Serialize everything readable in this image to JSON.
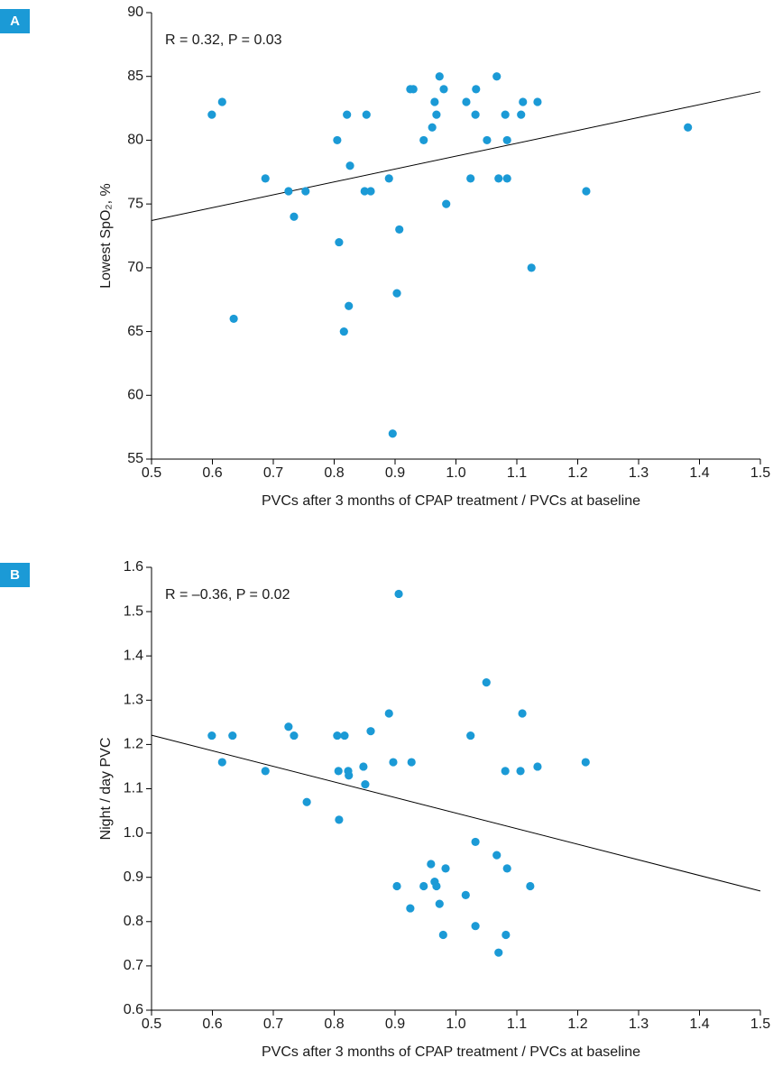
{
  "chart_data": [
    {
      "type": "scatter",
      "panel": "A",
      "annotation": "R = 0.32, P = 0.03",
      "xlabel": "PVCs after 3 months of CPAP treatment / PVCs at baseline",
      "ylabel": "Lowest SpO₂, %",
      "xlim": [
        0.5,
        1.5
      ],
      "ylim": [
        55,
        90
      ],
      "xticks": [
        0.5,
        0.6,
        0.7,
        0.8,
        0.9,
        {
          "value": 1,
          "label": "1.0"
        },
        1.1,
        1.2,
        1.3,
        1.4,
        1.5
      ],
      "yticks": [
        55,
        60,
        65,
        70,
        75,
        80,
        85,
        90
      ],
      "series": [
        {
          "color": "#1b9ad6",
          "x": [
            0.599,
            0.616,
            0.635,
            0.687,
            0.725,
            0.734,
            0.753,
            0.805,
            0.808,
            0.816,
            0.821,
            0.824,
            0.826,
            0.85,
            0.853,
            0.86,
            0.89,
            0.896,
            0.903,
            0.907,
            0.925,
            0.93,
            0.947,
            0.961,
            0.965,
            0.968,
            0.973,
            0.98,
            0.984,
            1.017,
            1.024,
            1.032,
            1.033,
            1.051,
            1.067,
            1.07,
            1.081,
            1.084,
            1.084,
            1.107,
            1.11,
            1.124,
            1.134,
            1.214,
            1.381
          ],
          "values": [
            82,
            83,
            66,
            77,
            76,
            74,
            76,
            80,
            72,
            65,
            82,
            67,
            78,
            76,
            82,
            76,
            77,
            57,
            68,
            73,
            84,
            84,
            80,
            81,
            83,
            82,
            85,
            84,
            75,
            83,
            77,
            82,
            84,
            80,
            85,
            77,
            82,
            80,
            77,
            82,
            83,
            70,
            83,
            76,
            81
          ]
        }
      ],
      "trend": {
        "color": "#000000",
        "x": [
          0.5,
          1.5
        ],
        "values": [
          73.7,
          83.8
        ]
      }
    },
    {
      "type": "scatter",
      "panel": "B",
      "annotation": "R = –0.36, P = 0.02",
      "xlabel": "PVCs after 3 months of CPAP treatment / PVCs at baseline",
      "ylabel": "Night / day PVC",
      "xlim": [
        0.5,
        1.5
      ],
      "ylim": [
        0.6,
        1.6
      ],
      "xticks": [
        0.5,
        0.6,
        0.7,
        0.8,
        0.9,
        {
          "value": 1,
          "label": "1.0"
        },
        1.1,
        1.2,
        1.3,
        1.4,
        1.5
      ],
      "yticks": [
        0.6,
        0.7,
        0.8,
        0.9,
        {
          "value": 1,
          "label": "1.0"
        },
        1.1,
        1.2,
        1.3,
        1.4,
        1.5,
        1.6
      ],
      "series": [
        {
          "color": "#1b9ad6",
          "x": [
            0.599,
            0.616,
            0.633,
            0.687,
            0.725,
            0.734,
            0.755,
            0.805,
            0.807,
            0.808,
            0.817,
            0.823,
            0.824,
            0.848,
            0.851,
            0.86,
            0.89,
            0.897,
            0.903,
            0.906,
            0.925,
            0.927,
            0.947,
            0.959,
            0.965,
            0.968,
            0.973,
            0.979,
            0.983,
            1.016,
            1.024,
            1.032,
            1.032,
            1.05,
            1.067,
            1.07,
            1.081,
            1.082,
            1.084,
            1.106,
            1.109,
            1.122,
            1.134,
            1.213
          ],
          "values": [
            1.22,
            1.16,
            1.22,
            1.14,
            1.24,
            1.22,
            1.07,
            1.22,
            1.14,
            1.03,
            1.22,
            1.14,
            1.13,
            1.15,
            1.11,
            1.23,
            1.27,
            1.16,
            0.88,
            1.54,
            0.83,
            1.16,
            0.88,
            0.93,
            0.89,
            0.88,
            0.84,
            0.77,
            0.92,
            0.86,
            1.22,
            0.98,
            0.79,
            1.34,
            0.95,
            0.73,
            1.14,
            0.77,
            0.92,
            1.14,
            1.27,
            0.88,
            1.15,
            1.16
          ]
        }
      ],
      "trend": {
        "color": "#000000",
        "x": [
          0.5,
          1.5
        ],
        "values": [
          1.221,
          0.869
        ]
      }
    }
  ]
}
